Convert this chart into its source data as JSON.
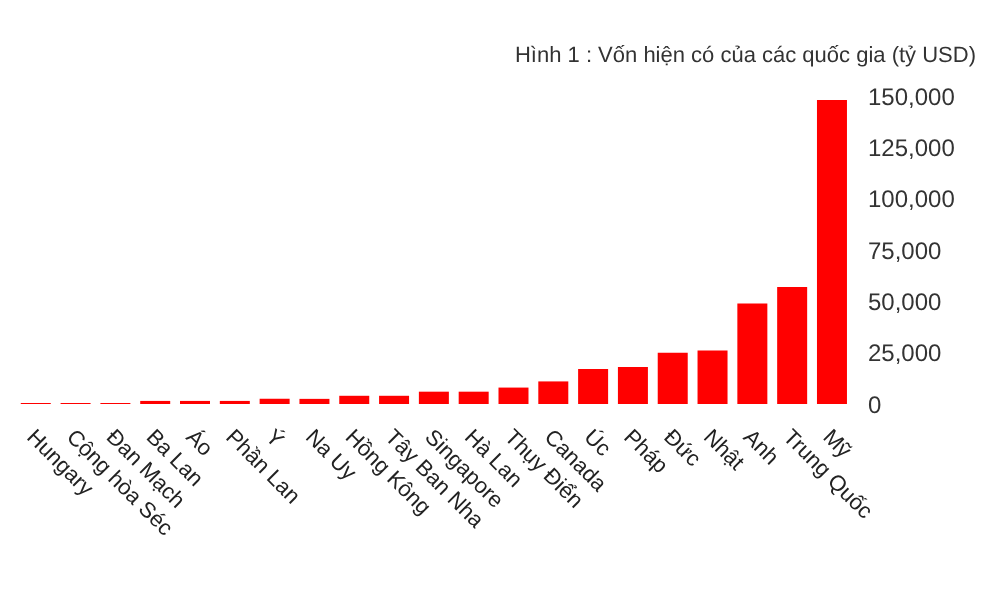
{
  "chart_data": {
    "type": "bar",
    "title": "Hình 1 : Vốn hiện có của các quốc gia (tỷ USD)",
    "categories": [
      "Hungary",
      "Cộng hòa Séc",
      "Đan Mạch",
      "Ba Lan",
      "Áo",
      "Phần Lan",
      "Ý",
      "Na Uy",
      "Hồng Kông",
      "Tây Ban Nha",
      "Singapore",
      "Hà Lan",
      "Thụy Điển",
      "Canada",
      "Úc",
      "Pháp",
      "Đức",
      "Nhật",
      "Anh",
      "Trung Quốc",
      "Mỹ"
    ],
    "values": [
      500,
      500,
      500,
      1500,
      1500,
      1500,
      2500,
      2500,
      4000,
      4000,
      6000,
      6000,
      8000,
      11000,
      17000,
      18000,
      25000,
      26000,
      49000,
      57000,
      148000
    ],
    "color": "#ff0000",
    "ylim": [
      0,
      150000
    ],
    "yticks": [
      0,
      {
        "value": 25000,
        "label": "25,000"
      },
      {
        "value": 50000,
        "label": "50,000"
      },
      {
        "value": 75000,
        "label": "75,000"
      },
      {
        "value": 100000,
        "label": "100,000"
      },
      {
        "value": 125000,
        "label": "125,000"
      },
      {
        "value": 150000,
        "label": "150,000"
      }
    ],
    "grid": false,
    "legend": false
  }
}
